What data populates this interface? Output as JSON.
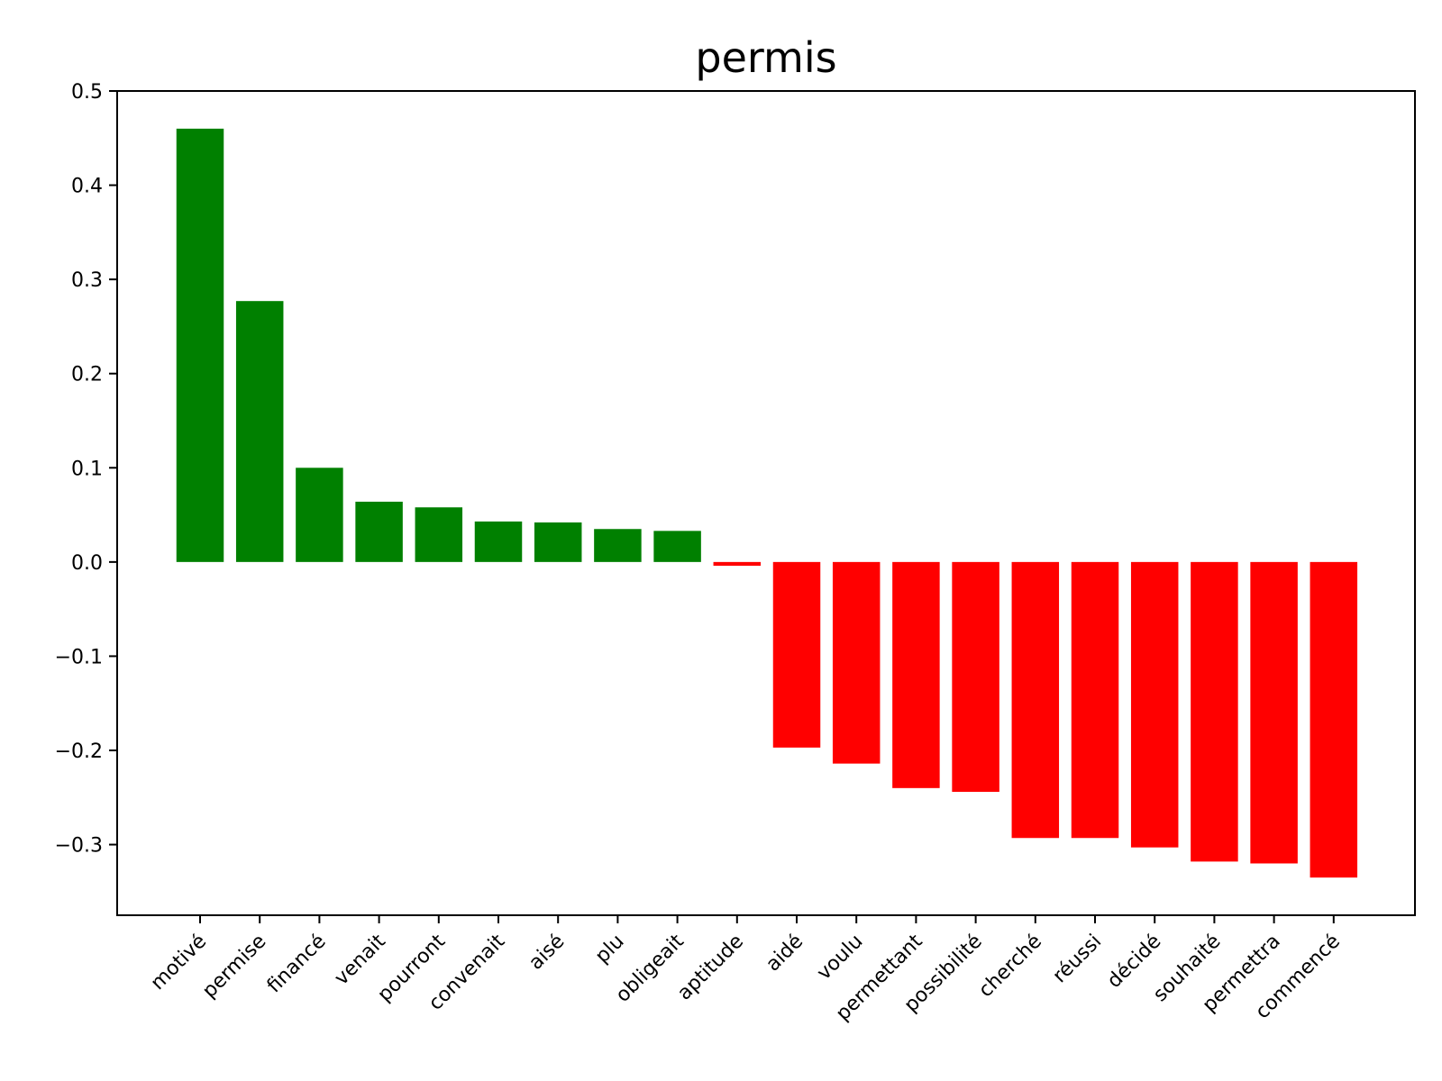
{
  "chart_data": {
    "type": "bar",
    "title": "permis",
    "xlabel": "",
    "ylabel": "",
    "ylim": [
      -0.375,
      0.5
    ],
    "yticks": [
      0.5,
      0.4,
      0.3,
      0.2,
      0.1,
      0.0,
      -0.1,
      -0.2,
      -0.3
    ],
    "ytick_labels": [
      "0.5",
      "0.4",
      "0.3",
      "0.2",
      "0.1",
      "0.0",
      "−0.1",
      "−0.2",
      "−0.3"
    ],
    "grid": false,
    "colors": {
      "positive": "#008000",
      "negative": "#ff0000"
    },
    "categories": [
      "motivé",
      "permise",
      "financé",
      "venait",
      "pourront",
      "convenait",
      "aisé",
      "plu",
      "obligeait",
      "aptitude",
      "aidé",
      "voulu",
      "permettant",
      "possibilité",
      "cherché",
      "réussi",
      "décidé",
      "souhaité",
      "permettra",
      "commencé"
    ],
    "values": [
      0.46,
      0.277,
      0.1,
      0.064,
      0.058,
      0.043,
      0.042,
      0.035,
      0.033,
      -0.004,
      -0.197,
      -0.214,
      -0.24,
      -0.244,
      -0.293,
      -0.293,
      -0.303,
      -0.318,
      -0.32,
      -0.335
    ]
  }
}
